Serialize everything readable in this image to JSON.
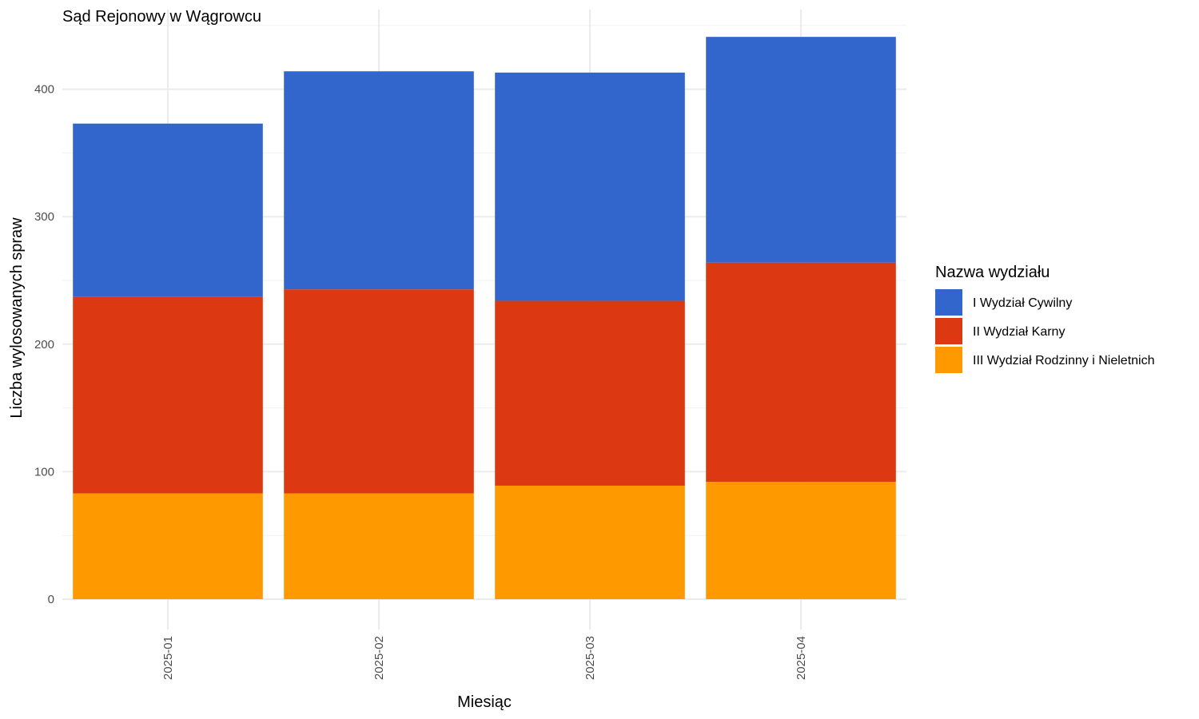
{
  "chart_data": {
    "type": "bar",
    "stacked": true,
    "title": "Sąd Rejonowy w Wągrowcu",
    "xlabel": "Miesiąc",
    "ylabel": "Liczba wylosowanych spraw",
    "categories": [
      "2025-01",
      "2025-02",
      "2025-03",
      "2025-04"
    ],
    "ylim": [
      0,
      460
    ],
    "yticks": [
      0,
      100,
      200,
      300,
      400
    ],
    "grid": true,
    "legend": {
      "title": "Nazwa wydziału",
      "position": "right"
    },
    "series": [
      {
        "name": "III Wydział Rodzinny i Nieletnich",
        "color": "#FF9900",
        "values": [
          83,
          83,
          89,
          92
        ]
      },
      {
        "name": "II Wydział Karny",
        "color": "#DC3912",
        "values": [
          154,
          160,
          145,
          172
        ]
      },
      {
        "name": "I Wydział Cywilny",
        "color": "#3366CC",
        "values": [
          136,
          171,
          179,
          177
        ]
      }
    ],
    "legend_order": [
      "I Wydział Cywilny",
      "II Wydział Karny",
      "III Wydział Rodzinny i Nieletnich"
    ]
  }
}
